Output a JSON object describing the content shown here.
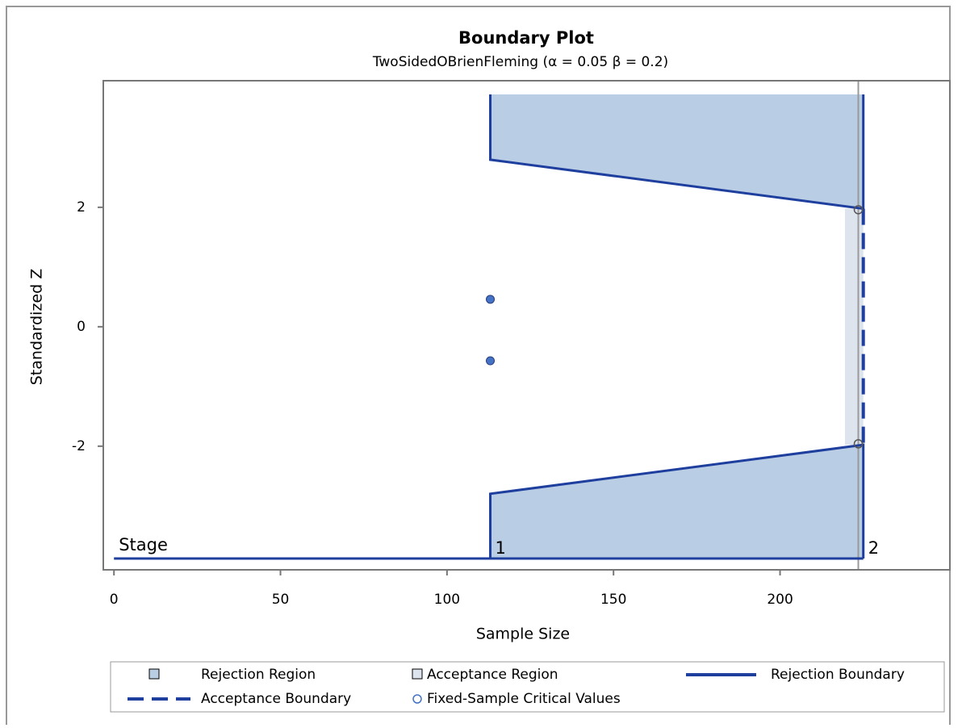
{
  "chart_data": {
    "type": "boundary",
    "title": "Boundary Plot",
    "subtitle": "TwoSidedOBrienFleming (α = 0.05  β = 0.2)",
    "x_label": "Sample Size",
    "y_label": "Standardized Z",
    "xlim": [
      -3.2,
      251
    ],
    "ylim": [
      -4.07,
      4.12
    ],
    "xticks": [
      0,
      50,
      100,
      150,
      200
    ],
    "yticks": [
      -2,
      0,
      2
    ],
    "stage_label": "Stage",
    "stage_names": [
      "1",
      "2"
    ],
    "stage_sample_size": [
      113,
      225
    ],
    "stage_axis_z": -3.88,
    "region_top_z": 3.89,
    "rejection_upper": [
      2.797,
      1.977
    ],
    "rejection_lower": [
      -2.797,
      -1.977
    ],
    "acceptance_region_x": [
      219.5,
      225
    ],
    "acceptance_boundary": [
      1.977,
      -1.977
    ],
    "fixed_sample_size": 223.5,
    "fixed_sample_critical_values": [
      1.96,
      -1.96
    ],
    "observed_x": [
      113,
      113
    ],
    "observed_z": [
      0.46,
      -0.57
    ],
    "colors": {
      "region": "#b9cde5",
      "boundary": "#1f3f9f",
      "acceptance": "#dde4ee",
      "points": "#4472c4",
      "fixed_line": "#9a9a9a"
    },
    "legend": [
      "Rejection Region",
      "Acceptance Region",
      "Rejection Boundary",
      "Acceptance Boundary",
      "Fixed-Sample Critical Values"
    ]
  }
}
